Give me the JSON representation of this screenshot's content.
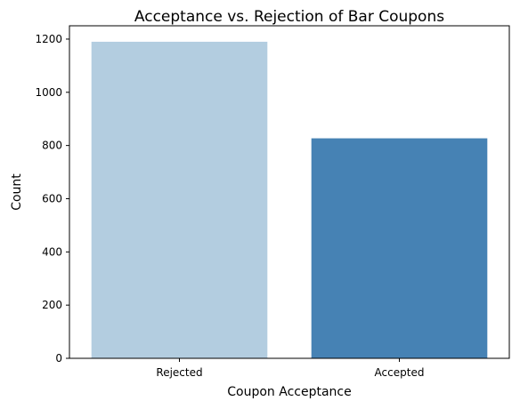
{
  "chart_data": {
    "type": "bar",
    "title": "Acceptance vs. Rejection of Bar Coupons",
    "xlabel": "Coupon Acceptance",
    "ylabel": "Count",
    "categories": [
      "Rejected",
      "Accepted"
    ],
    "values": [
      1190,
      827
    ],
    "colors": [
      "#b3cde0",
      "#4682b4"
    ],
    "ylim": [
      0,
      1250
    ],
    "yticks": [
      0,
      200,
      400,
      600,
      800,
      1000,
      1200
    ],
    "grid": false,
    "legend": "none"
  }
}
